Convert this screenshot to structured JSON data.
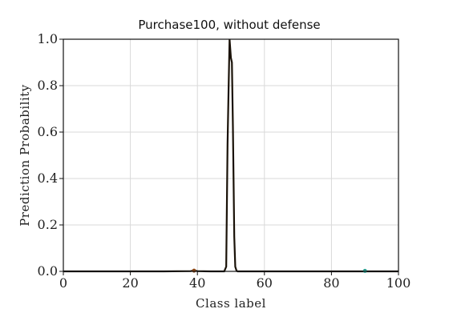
{
  "chart_data": {
    "type": "line",
    "title": "Purchase100, without defense",
    "xlabel": "Class label",
    "ylabel": "Prediction Probability",
    "xlim": [
      0,
      100
    ],
    "ylim": [
      0,
      1.0
    ],
    "x_ticks": [
      0,
      20,
      40,
      60,
      80,
      100
    ],
    "x_tick_labels": [
      "0",
      "20",
      "40",
      "60",
      "80",
      "100"
    ],
    "y_ticks": [
      0.0,
      0.2,
      0.4,
      0.6,
      0.8,
      1.0
    ],
    "y_tick_labels": [
      "0.0",
      "0.2",
      "0.4",
      "0.6",
      "0.8",
      "1.0"
    ],
    "grid": true,
    "series": [
      {
        "name": "prediction",
        "color": "#1a1208",
        "x": [
          0,
          10,
          20,
          30,
          38,
          39,
          40,
          44,
          48,
          48.6,
          49,
          49.3,
          49.6,
          50,
          50.3,
          50.6,
          51,
          51.3,
          51.7,
          52,
          56,
          60,
          65,
          70,
          80,
          90,
          100
        ],
        "y": [
          0,
          0,
          0,
          0,
          0.001,
          0.004,
          0.001,
          0,
          0,
          0.02,
          0.55,
          0.78,
          1.0,
          0.92,
          0.9,
          0.62,
          0.15,
          0.02,
          0.002,
          0,
          0,
          0,
          0,
          0,
          0,
          0,
          0
        ]
      }
    ],
    "markers": [
      {
        "x": 39,
        "y": 0.003,
        "color": "#8b4513"
      },
      {
        "x": 90,
        "y": 0.002,
        "color": "#2a9d8f"
      }
    ]
  }
}
